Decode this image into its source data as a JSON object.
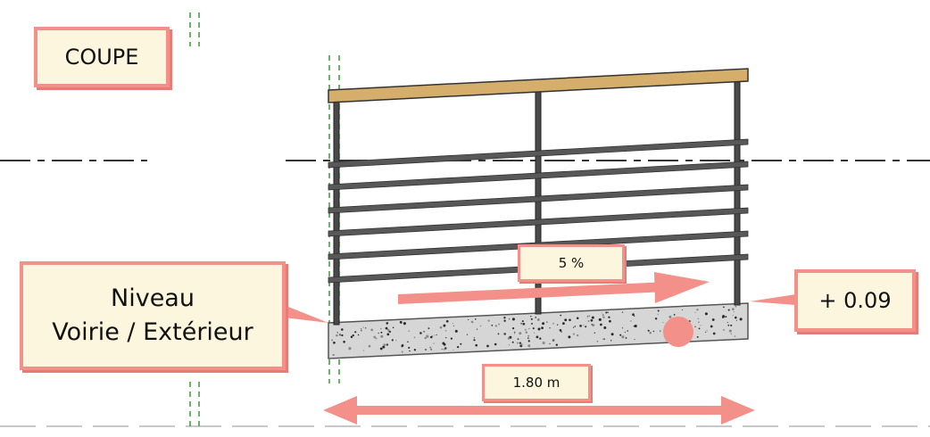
{
  "labels": {
    "section_title": "COUPE",
    "level_line1": "Niveau",
    "level_line2": "Voirie / Extérieur",
    "elevation": "+ 0.09",
    "slope": "5 %",
    "width": "1.80 m"
  },
  "colors": {
    "annotation": "#f3908a",
    "label_fill": "#fdf6df",
    "handrail": "#d4ae6a",
    "rails": "#555555",
    "concrete": "#d6d6d6",
    "guide_green": "#3a9a3a"
  },
  "railing": {
    "horizontal_rail_count": 7,
    "post_count": 3
  }
}
